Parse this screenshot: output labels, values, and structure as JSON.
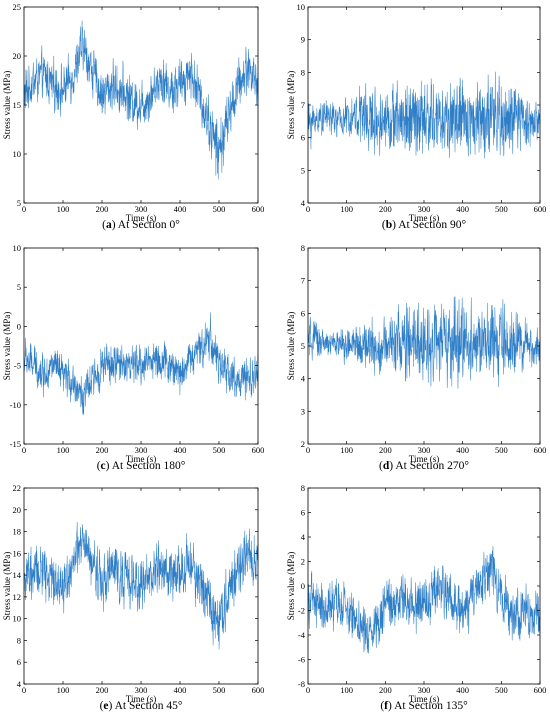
{
  "chart_data": [
    {
      "type": "line",
      "caption_letter": "a",
      "caption_text": "At Section 0°",
      "xlabel": "Time (s)",
      "ylabel": "Stress value (MPa)",
      "xlim": [
        0,
        600
      ],
      "ylim": [
        5,
        25
      ],
      "xticks": [
        0,
        100,
        200,
        300,
        400,
        500,
        600
      ],
      "yticks": [
        5,
        10,
        15,
        20,
        25
      ],
      "series": [
        {
          "color": "#2f7fc8",
          "x": [
            0,
            25,
            50,
            75,
            100,
            125,
            150,
            175,
            200,
            225,
            250,
            275,
            300,
            325,
            350,
            375,
            400,
            425,
            450,
            475,
            500,
            525,
            550,
            575,
            600
          ],
          "y": [
            16,
            17.5,
            18,
            17,
            16.5,
            18,
            21,
            18.5,
            16,
            17,
            16.5,
            15.5,
            15,
            16,
            18,
            16.5,
            17,
            18.5,
            16,
            13,
            10,
            14,
            17,
            19,
            17
          ],
          "amp": [
            3,
            3,
            3,
            3,
            3,
            3,
            3,
            3,
            3,
            3,
            3,
            3,
            3,
            3,
            3,
            3,
            3,
            3,
            3,
            3.5,
            4,
            3,
            3,
            3,
            3
          ]
        }
      ]
    },
    {
      "type": "line",
      "caption_letter": "b",
      "caption_text": "At Section 90°",
      "xlabel": "Time (s)",
      "ylabel": "Stress value (MPa)",
      "xlim": [
        0,
        600
      ],
      "ylim": [
        4,
        10
      ],
      "xticks": [
        0,
        100,
        200,
        300,
        400,
        500,
        600
      ],
      "yticks": [
        4,
        5,
        6,
        7,
        8,
        9,
        10
      ],
      "series": [
        {
          "color": "#2f7fc8",
          "x": [
            0,
            25,
            50,
            75,
            100,
            125,
            150,
            175,
            200,
            225,
            250,
            275,
            300,
            325,
            350,
            375,
            400,
            425,
            450,
            475,
            500,
            525,
            550,
            575,
            600
          ],
          "y": [
            6.4,
            6.6,
            6.7,
            6.5,
            6.6,
            6.7,
            6.6,
            6.5,
            6.6,
            6.5,
            6.6,
            6.6,
            6.5,
            6.6,
            6.5,
            6.6,
            6.5,
            6.6,
            6.7,
            6.5,
            6.6,
            6.5,
            6.6,
            6.5,
            6.5
          ],
          "amp": [
            0.9,
            0.6,
            0.6,
            0.6,
            0.7,
            0.9,
            1.4,
            1.1,
            1.0,
            1.3,
            1.5,
            1.6,
            1.5,
            1.4,
            1.4,
            1.6,
            1.4,
            1.3,
            1.4,
            1.5,
            1.6,
            1.3,
            1.1,
            0.9,
            0.8
          ]
        }
      ]
    },
    {
      "type": "line",
      "caption_letter": "c",
      "caption_text": "At Section 180°",
      "xlabel": "Time (s)",
      "ylabel": "Stress value (MPa)",
      "xlim": [
        0,
        600
      ],
      "ylim": [
        -15,
        10
      ],
      "xticks": [
        0,
        100,
        200,
        300,
        400,
        500,
        600
      ],
      "yticks": [
        -15,
        -10,
        -5,
        0,
        5,
        10
      ],
      "series": [
        {
          "color": "#2f7fc8",
          "x": [
            0,
            25,
            50,
            75,
            100,
            125,
            150,
            175,
            200,
            225,
            250,
            275,
            300,
            325,
            350,
            375,
            400,
            425,
            450,
            475,
            500,
            525,
            550,
            575,
            600
          ],
          "y": [
            -4,
            -5,
            -6,
            -5,
            -6.5,
            -7,
            -9,
            -7,
            -5,
            -5,
            -4.5,
            -5,
            -5,
            -4,
            -4.5,
            -5,
            -6,
            -4,
            -3,
            -1,
            -5,
            -6,
            -7,
            -7,
            -6
          ],
          "amp": [
            3,
            3,
            3,
            3,
            3,
            3,
            3,
            3,
            3,
            3,
            3,
            3,
            3,
            3,
            3,
            3,
            3,
            3,
            3,
            4,
            3,
            3,
            3,
            3,
            3
          ]
        }
      ]
    },
    {
      "type": "line",
      "caption_letter": "d",
      "caption_text": "At Section 270°",
      "xlabel": "Time (s)",
      "ylabel": "Stress value (MPa)",
      "xlim": [
        0,
        600
      ],
      "ylim": [
        2,
        8
      ],
      "xticks": [
        0,
        100,
        200,
        300,
        400,
        500,
        600
      ],
      "yticks": [
        2,
        3,
        4,
        5,
        6,
        7,
        8
      ],
      "series": [
        {
          "color": "#2f7fc8",
          "x": [
            0,
            25,
            50,
            75,
            100,
            125,
            150,
            175,
            200,
            225,
            250,
            275,
            300,
            325,
            350,
            375,
            400,
            425,
            450,
            475,
            500,
            525,
            550,
            575,
            600
          ],
          "y": [
            5.1,
            5.2,
            5.0,
            5.1,
            5.0,
            5.0,
            5.1,
            4.9,
            5.0,
            5.2,
            5.0,
            5.1,
            5.0,
            5.2,
            5.1,
            5.0,
            5.1,
            5.2,
            5.0,
            5.1,
            5.0,
            5.1,
            5.0,
            5.0,
            4.9
          ],
          "amp": [
            0.8,
            0.7,
            0.5,
            0.5,
            0.6,
            0.8,
            1.2,
            1.0,
            0.9,
            1.1,
            1.5,
            1.6,
            1.4,
            1.5,
            1.4,
            1.6,
            1.5,
            1.4,
            1.3,
            1.4,
            1.5,
            1.2,
            1.0,
            0.8,
            0.8
          ]
        }
      ]
    },
    {
      "type": "line",
      "caption_letter": "e",
      "caption_text": "At Section 45°",
      "xlabel": "Time (s)",
      "ylabel": "Stress value (MPa)",
      "xlim": [
        0,
        600
      ],
      "ylim": [
        4,
        22
      ],
      "xticks": [
        0,
        100,
        200,
        300,
        400,
        500,
        600
      ],
      "yticks": [
        4,
        6,
        8,
        10,
        12,
        14,
        16,
        18,
        20,
        22
      ],
      "series": [
        {
          "color": "#2f7fc8",
          "x": [
            0,
            25,
            50,
            75,
            100,
            125,
            150,
            175,
            200,
            225,
            250,
            275,
            300,
            325,
            350,
            375,
            400,
            425,
            450,
            475,
            500,
            525,
            550,
            575,
            600
          ],
          "y": [
            13.5,
            14,
            14.5,
            13.5,
            13,
            15,
            17,
            15,
            13.5,
            14.5,
            14,
            13.5,
            13,
            14,
            15,
            14,
            14,
            15,
            13.5,
            11.5,
            10,
            12.5,
            14.5,
            16,
            15
          ],
          "amp": [
            3,
            3,
            3,
            3,
            3,
            3,
            3,
            3,
            3,
            3,
            3,
            3,
            3,
            3,
            3,
            3,
            3,
            3,
            3,
            3.3,
            3.8,
            3,
            3,
            3,
            3
          ]
        }
      ]
    },
    {
      "type": "line",
      "caption_letter": "f",
      "caption_text": "At Section 135°",
      "xlabel": "Time (s)",
      "ylabel": "Stress value (MPa)",
      "xlim": [
        0,
        600
      ],
      "ylim": [
        -8,
        8
      ],
      "xticks": [
        0,
        100,
        200,
        300,
        400,
        500,
        600
      ],
      "yticks": [
        -8,
        -6,
        -4,
        -2,
        0,
        2,
        4,
        6,
        8
      ],
      "series": [
        {
          "color": "#2f7fc8",
          "x": [
            0,
            25,
            50,
            75,
            100,
            125,
            150,
            175,
            200,
            225,
            250,
            275,
            300,
            325,
            350,
            375,
            400,
            425,
            450,
            475,
            500,
            525,
            550,
            575,
            600
          ],
          "y": [
            -1,
            -1.5,
            -2,
            -1.5,
            -2,
            -2.5,
            -4,
            -3,
            -1.5,
            -1.5,
            -1,
            -1.5,
            -1.5,
            0,
            -0.5,
            -1,
            -2,
            -1,
            0,
            1.5,
            -1,
            -2,
            -2.5,
            -2.5,
            -2
          ],
          "amp": [
            2.5,
            2.5,
            2.5,
            2.5,
            2.5,
            2.5,
            2.5,
            2.5,
            2.5,
            2.5,
            2.5,
            2.5,
            2.5,
            2.5,
            2.5,
            2.5,
            2.5,
            2.5,
            2.5,
            3,
            2.5,
            2.5,
            2.5,
            2.5,
            2.5
          ]
        }
      ]
    }
  ]
}
